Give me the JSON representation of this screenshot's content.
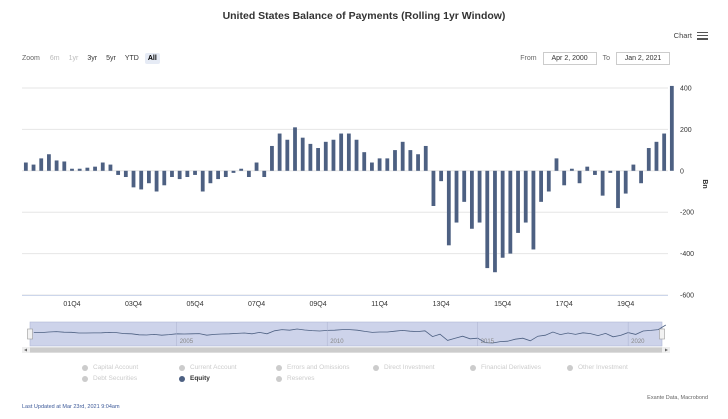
{
  "header": {
    "chart_menu_label": "Chart"
  },
  "zoom": {
    "label": "Zoom",
    "buttons": [
      "6m",
      "1yr",
      "3yr",
      "5yr",
      "YTD",
      "All"
    ]
  },
  "range": {
    "from_label": "From",
    "from_value": "Apr 2, 2000",
    "to_label": "To",
    "to_value": "Jan 2, 2021"
  },
  "chart_data": {
    "type": "bar",
    "title": "United States Balance of Payments (Rolling 1yr Window)",
    "ylabel": "Bn",
    "ylim": [
      -600,
      400
    ],
    "yticks": [
      400,
      200,
      0,
      -200,
      -400,
      -600
    ],
    "x_start": 2000.25,
    "x_end": 2021.0,
    "x_step": 0.25,
    "xtick_labels": [
      "01Q4",
      "03Q4",
      "05Q4",
      "07Q4",
      "09Q4",
      "11Q4",
      "13Q4",
      "15Q4",
      "17Q4",
      "19Q4"
    ],
    "xtick_positions": [
      2001.75,
      2003.75,
      2005.75,
      2007.75,
      2009.75,
      2011.75,
      2013.75,
      2015.75,
      2017.75,
      2019.75
    ],
    "series": [
      {
        "name": "Equity",
        "color": "#4d6082",
        "values": [
          40,
          30,
          60,
          80,
          50,
          45,
          10,
          10,
          15,
          20,
          40,
          30,
          -20,
          -30,
          -80,
          -90,
          -60,
          -100,
          -70,
          -30,
          -40,
          -30,
          -20,
          -100,
          -60,
          -40,
          -30,
          -10,
          10,
          -30,
          40,
          -30,
          120,
          180,
          150,
          210,
          160,
          130,
          110,
          140,
          150,
          180,
          180,
          150,
          90,
          40,
          60,
          60,
          100,
          140,
          100,
          80,
          120,
          -170,
          -50,
          -360,
          -250,
          -150,
          -280,
          -250,
          -470,
          -490,
          -420,
          -400,
          -300,
          -250,
          -380,
          -150,
          -100,
          60,
          -70,
          10,
          -60,
          20,
          -20,
          -120,
          -10,
          -180,
          -110,
          30,
          -60,
          110,
          140,
          180,
          410
        ]
      }
    ],
    "navigator": {
      "xtick_labels": [
        "2005",
        "2010",
        "2015",
        "2020"
      ],
      "xtick_positions": [
        2005,
        2010,
        2015,
        2020
      ]
    }
  },
  "legend": {
    "rows": [
      [
        {
          "label": "Capital Account",
          "active": false
        },
        {
          "label": "Current Account",
          "active": false
        },
        {
          "label": "Errors and Omissions",
          "active": false
        },
        {
          "label": "Direct Investment",
          "active": false
        },
        {
          "label": "Financial Derivatives",
          "active": false
        },
        {
          "label": "Other Investment",
          "active": false
        }
      ],
      [
        {
          "label": "Debt Securities",
          "active": false
        },
        {
          "label": "Equity",
          "active": true
        },
        {
          "label": "Reserves",
          "active": false
        }
      ]
    ]
  },
  "footer": {
    "last_updated": "Last Updated at Mar 23rd, 2021 9:04am",
    "source": "Exante Data, Macrobond"
  }
}
